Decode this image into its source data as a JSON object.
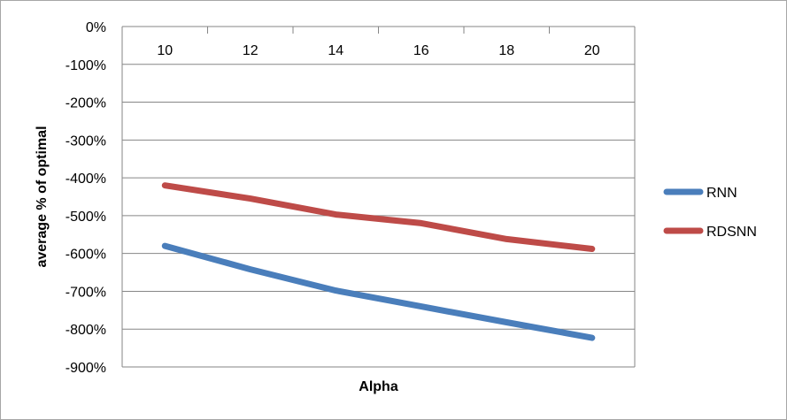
{
  "chart_data": {
    "type": "line",
    "title": "",
    "xlabel": "Alpha",
    "ylabel": "average % of optimal",
    "categories": [
      "10",
      "12",
      "14",
      "16",
      "18",
      "20"
    ],
    "ylim": [
      -900,
      0
    ],
    "ytick_step": 100,
    "y_unit_suffix": "%",
    "grid": true,
    "legend_position": "right",
    "series": [
      {
        "name": "RNN",
        "color": "#4a7ebb",
        "values": [
          -580,
          -642,
          -698,
          -740,
          -782,
          -823
        ]
      },
      {
        "name": "RDSNN",
        "color": "#be4b48",
        "values": [
          -420,
          -455,
          -497,
          -520,
          -562,
          -588
        ]
      }
    ]
  }
}
